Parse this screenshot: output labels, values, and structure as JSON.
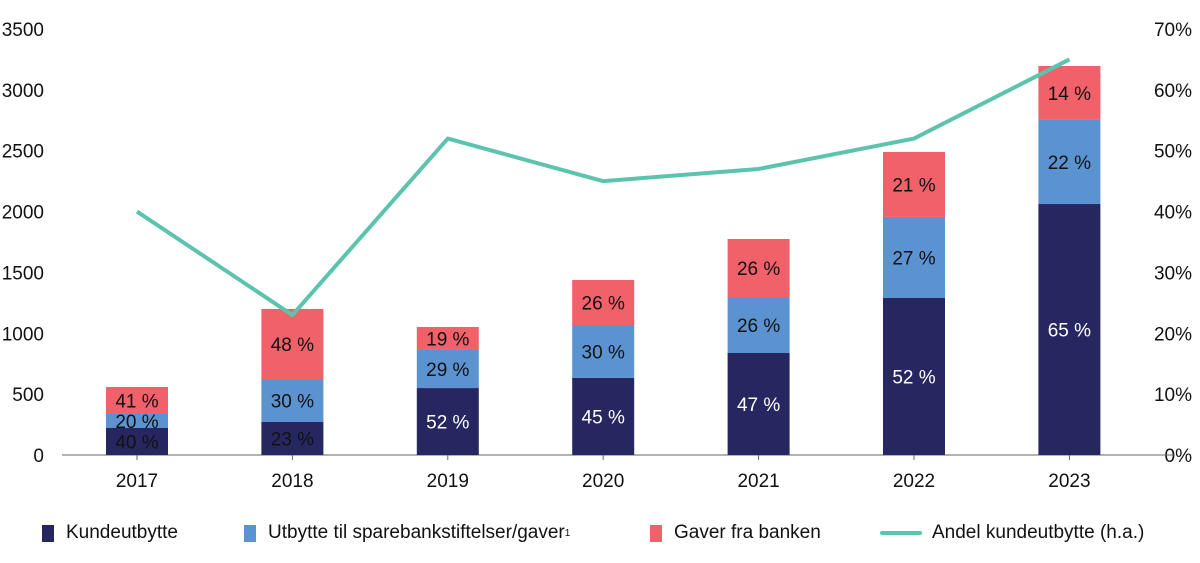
{
  "chart_data": {
    "type": "bar",
    "stacked": true,
    "categories": [
      "2017",
      "2018",
      "2019",
      "2020",
      "2021",
      "2022",
      "2023"
    ],
    "series": [
      {
        "name": "Kundeutbytte",
        "color": "#262660",
        "values": [
          222,
          271,
          550,
          633,
          838,
          1290,
          2062
        ],
        "labels": [
          "40 %",
          "23 %",
          "52 %",
          "45 %",
          "47 %",
          "52 %",
          "65 %"
        ]
      },
      {
        "name": "Utbytte til sparebankstiftelser/gaver",
        "superscript": "1",
        "color": "#5b93d0",
        "values": [
          115,
          353,
          313,
          435,
          460,
          666,
          691
        ],
        "labels": [
          "20 %",
          "30 %",
          "29 %",
          "30 %",
          "26 %",
          "27 %",
          "22 %"
        ]
      },
      {
        "name": "Gaver fra banken",
        "color": "#f0616a",
        "values": [
          222,
          576,
          189,
          370,
          477,
          534,
          443
        ],
        "labels": [
          "41 %",
          "48 %",
          "19 %",
          "26 %",
          "26 %",
          "21 %",
          "14 %"
        ]
      }
    ],
    "line": {
      "name": "Andel kundeutbytte (h.a.)",
      "color": "#5cc3ad",
      "axis": "right",
      "values": [
        40,
        23,
        52,
        45,
        47,
        52,
        65
      ]
    },
    "ylim": [
      0,
      3500
    ],
    "yticks": [
      "0",
      "500",
      "1000",
      "1500",
      "2000",
      "2500",
      "3000",
      "3500"
    ],
    "y2lim": [
      0,
      70
    ],
    "y2ticks": [
      "0%",
      "10%",
      "20%",
      "30%",
      "40%",
      "50%",
      "60%",
      "70%"
    ],
    "grid": false,
    "legend_position": "bottom"
  }
}
